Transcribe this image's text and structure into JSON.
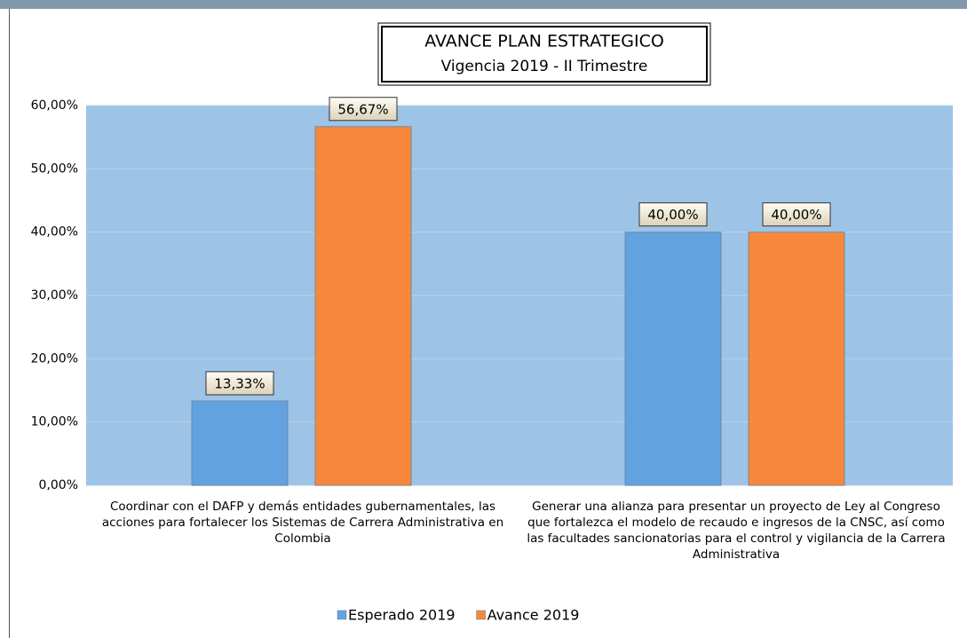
{
  "chart_data": {
    "type": "bar",
    "title": "AVANCE PLAN ESTRATEGICO",
    "subtitle": "Vigencia 2019 - II Trimestre",
    "categories": [
      "Coordinar con el DAFP y demás entidades gubernamentales, las acciones para fortalecer los Sistemas de Carrera Administrativa en Colombia",
      "Generar una alianza para presentar un proyecto de Ley al Congreso que fortalezca el modelo de recaudo e ingresos de la CNSC, así como las facultades sancionatorias para el control y vigilancia de la Carrera Administrativa"
    ],
    "series": [
      {
        "name": "Esperado 2019",
        "color": "#62a2e0",
        "values": [
          13.33,
          40
        ],
        "value_labels": [
          "13,33%",
          "40,00%"
        ]
      },
      {
        "name": "Avance 2019",
        "color": "#f7883b",
        "values": [
          56.67,
          40
        ],
        "value_labels": [
          "56,67%",
          "40,00%"
        ]
      }
    ],
    "ylim": [
      0,
      60
    ],
    "yticks": [
      {
        "value": 0,
        "label": "0,00%"
      },
      {
        "value": 10,
        "label": "10,00%"
      },
      {
        "value": 20,
        "label": "20,00%"
      },
      {
        "value": 30,
        "label": "30,00%"
      },
      {
        "value": 40,
        "label": "40,00%"
      },
      {
        "value": 50,
        "label": "50,00%"
      },
      {
        "value": 60,
        "label": "60,00%"
      }
    ],
    "grid": true,
    "legend": "bottom"
  }
}
